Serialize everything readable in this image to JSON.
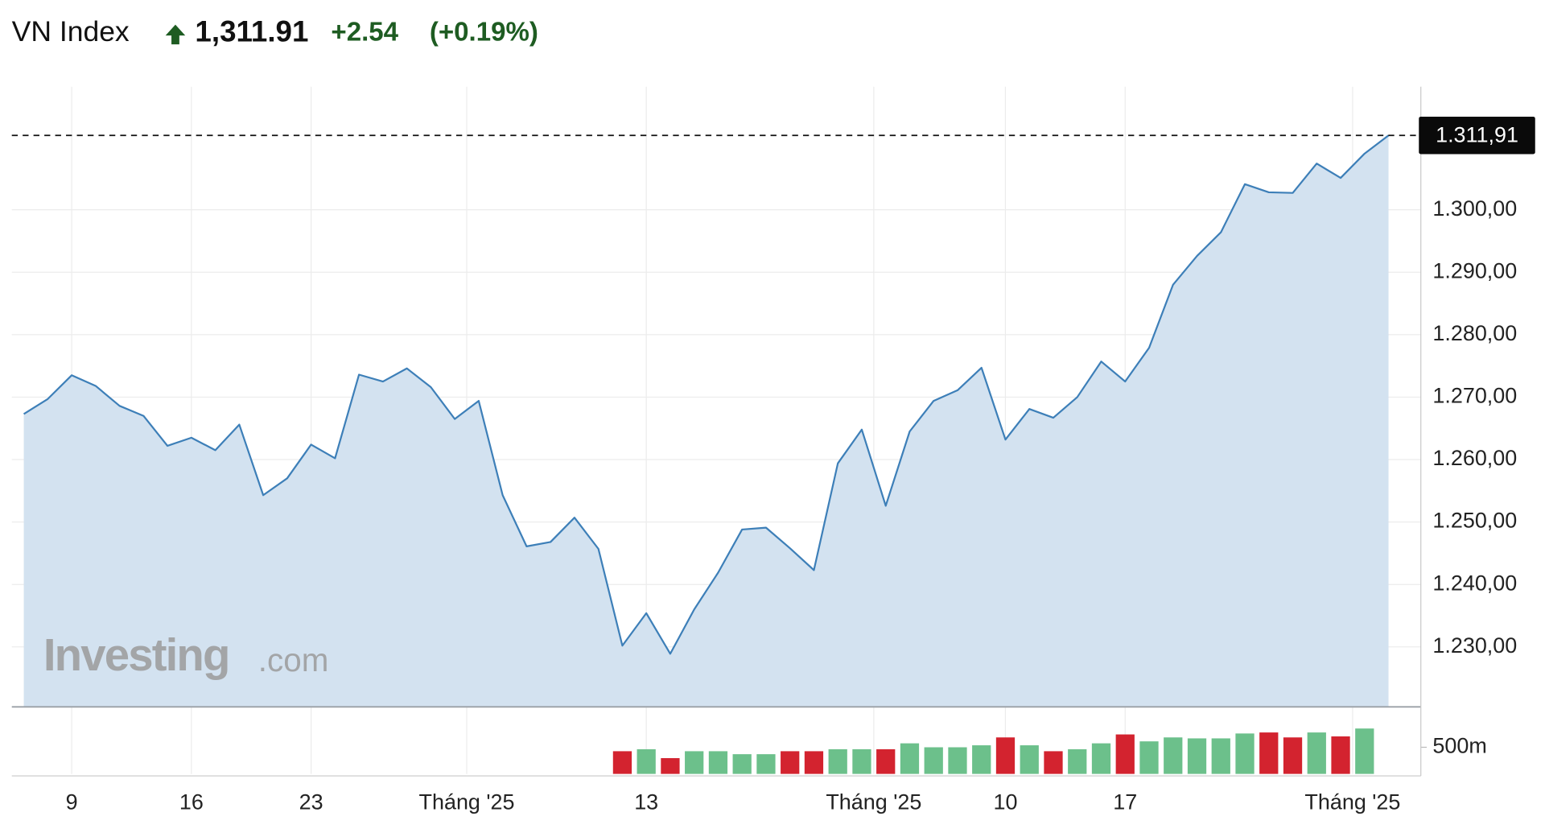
{
  "header": {
    "name": "VN Index",
    "price": "1,311.91",
    "change": "+2.54",
    "change_percent": "(+0.19%)"
  },
  "watermark": {
    "brand": "Investing",
    "suffix": ".com"
  },
  "chart_data": {
    "type": "line",
    "color": "#3d7fb8",
    "area_color": "#d3e2f0",
    "grid": true,
    "x": [
      0,
      1,
      2,
      3,
      4,
      5,
      6,
      7,
      8,
      9,
      10,
      11,
      12,
      13,
      14,
      15,
      16,
      17,
      18,
      19,
      20,
      21,
      22,
      23,
      24,
      25,
      26,
      27,
      28,
      29,
      30,
      31,
      32,
      33,
      34,
      35,
      36,
      37,
      38,
      39,
      40,
      41,
      42,
      43,
      44,
      45,
      46,
      47,
      48,
      49,
      50,
      51,
      52,
      53,
      54,
      55,
      56,
      57
    ],
    "values": [
      1267.3,
      1269.7,
      1273.5,
      1271.8,
      1268.6,
      1267.0,
      1262.2,
      1263.5,
      1261.5,
      1265.6,
      1254.3,
      1257.0,
      1262.4,
      1260.2,
      1273.6,
      1272.5,
      1274.6,
      1271.6,
      1266.5,
      1269.4,
      1254.3,
      1246.1,
      1246.8,
      1250.7,
      1245.7,
      1230.2,
      1235.4,
      1228.9,
      1236.0,
      1241.9,
      1248.8,
      1249.1,
      1245.8,
      1242.3,
      1259.4,
      1264.8,
      1252.6,
      1264.5,
      1269.4,
      1271.1,
      1274.7,
      1263.2,
      1268.1,
      1266.7,
      1270.0,
      1275.7,
      1272.5,
      1277.9,
      1288.0,
      1292.6,
      1296.4,
      1304.1,
      1302.8,
      1302.7,
      1307.4,
      1305.1,
      1309.0,
      1311.91
    ],
    "xlim": [
      -0.5,
      58.35
    ],
    "xticks": [
      {
        "value": 2,
        "label": "9"
      },
      {
        "value": 7,
        "label": "16"
      },
      {
        "value": 12,
        "label": "23"
      },
      {
        "value": 18.5,
        "label": "Tháng '25"
      },
      {
        "value": 26,
        "label": "13"
      },
      {
        "value": 35.5,
        "label": "Tháng '25"
      },
      {
        "value": 41,
        "label": "10"
      },
      {
        "value": 46,
        "label": "17"
      },
      {
        "value": 55.5,
        "label": "Tháng '25"
      }
    ],
    "ylim": [
      1220.4,
      1319.7
    ],
    "yticks": [
      {
        "value": 1230,
        "label": "1.230,00"
      },
      {
        "value": 1240,
        "label": "1.240,00"
      },
      {
        "value": 1250,
        "label": "1.250,00"
      },
      {
        "value": 1260,
        "label": "1.260,00"
      },
      {
        "value": 1270,
        "label": "1.270,00"
      },
      {
        "value": 1280,
        "label": "1.280,00"
      },
      {
        "value": 1290,
        "label": "1.290,00"
      },
      {
        "value": 1300,
        "label": "1.300,00"
      }
    ],
    "last_value": {
      "value": 1311.91,
      "label": "1.311,91"
    },
    "volume": {
      "values": [
        null,
        null,
        null,
        null,
        null,
        null,
        null,
        null,
        null,
        null,
        null,
        null,
        null,
        null,
        null,
        null,
        null,
        null,
        null,
        null,
        null,
        null,
        null,
        null,
        null,
        426,
        463,
        296,
        426,
        426,
        370,
        370,
        426,
        426,
        463,
        463,
        463,
        574,
        500,
        500,
        537,
        685,
        537,
        426,
        463,
        574,
        741,
        611,
        685,
        667,
        667,
        759,
        778,
        685,
        778,
        704,
        852,
        null
      ],
      "colors": [
        null,
        null,
        null,
        null,
        null,
        null,
        null,
        null,
        null,
        null,
        null,
        null,
        null,
        null,
        null,
        null,
        null,
        null,
        null,
        null,
        null,
        null,
        null,
        null,
        null,
        "#d3232f",
        "#6cc08b",
        "#d3232f",
        "#6cc08b",
        "#6cc08b",
        "#6cc08b",
        "#6cc08b",
        "#d3232f",
        "#d3232f",
        "#6cc08b",
        "#6cc08b",
        "#d3232f",
        "#6cc08b",
        "#6cc08b",
        "#6cc08b",
        "#6cc08b",
        "#d3232f",
        "#6cc08b",
        "#d3232f",
        "#6cc08b",
        "#6cc08b",
        "#d3232f",
        "#6cc08b",
        "#6cc08b",
        "#6cc08b",
        "#6cc08b",
        "#6cc08b",
        "#d3232f",
        "#d3232f",
        "#6cc08b",
        "#d3232f",
        "#6cc08b",
        null
      ],
      "ylim": [
        0,
        1240
      ],
      "yticks": [
        {
          "value": 500,
          "label": "500m"
        }
      ]
    }
  }
}
